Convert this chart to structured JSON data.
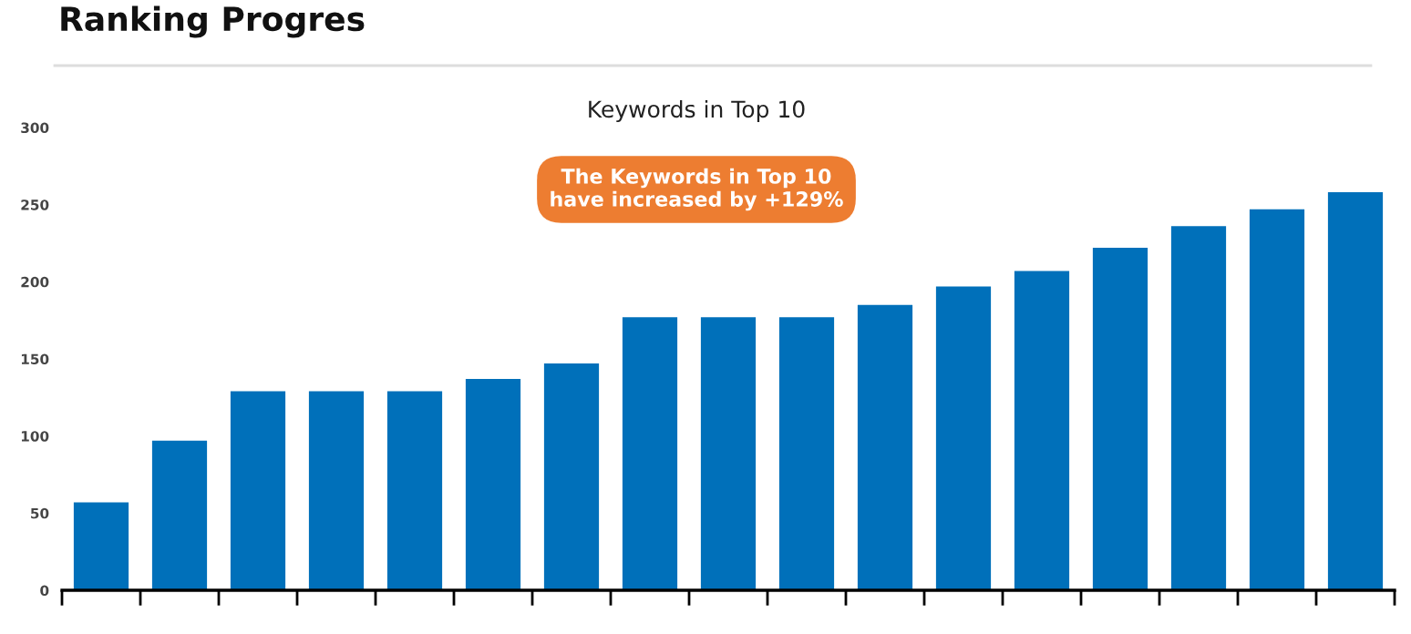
{
  "chart_data": {
    "type": "bar",
    "title": "Ranking Progres",
    "subtitle": "Keywords in Top 10",
    "annotations": [
      "The Keywords in Top 10\nhave increased by +129%"
    ],
    "categories": [
      null,
      null,
      null,
      null,
      null,
      null,
      null,
      null,
      null,
      null,
      null,
      null,
      null,
      null,
      null,
      null,
      null
    ],
    "values": [
      57,
      97,
      129,
      129,
      129,
      137,
      147,
      177,
      177,
      177,
      185,
      197,
      207,
      222,
      236,
      247,
      258
    ],
    "color": "#0070ba",
    "ylim": [
      0,
      300
    ],
    "yticks": [
      0,
      50,
      100,
      150,
      200,
      250,
      300
    ],
    "grid": false,
    "legend": false
  }
}
